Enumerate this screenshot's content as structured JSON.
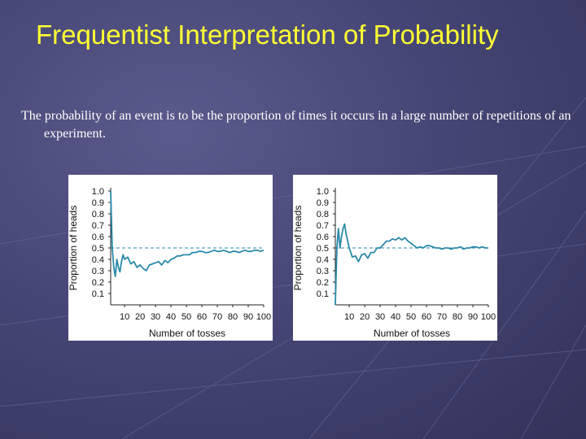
{
  "slide": {
    "title": "Frequentist Interpretation of Probability",
    "body": "The probability of an event is to be the proportion of times it occurs in a large number of repetitions of an experiment."
  },
  "colors": {
    "title": "#ffff33",
    "text": "#ffffff",
    "line": "#2a8aa8",
    "reference": "#2a8aa8"
  },
  "chart_data": [
    {
      "type": "line",
      "xlabel": "Number of tosses",
      "ylabel": "Proportion of heads",
      "xlim": [
        1,
        100
      ],
      "ylim": [
        0,
        1.0
      ],
      "x_ticks": [
        10,
        20,
        30,
        40,
        50,
        60,
        70,
        80,
        90,
        100
      ],
      "y_ticks": [
        0.1,
        0.2,
        0.3,
        0.4,
        0.5,
        0.6,
        0.7,
        0.8,
        0.9,
        1.0
      ],
      "reference_y": 0.5,
      "x": [
        1,
        2,
        3,
        4,
        5,
        6,
        7,
        8,
        9,
        10,
        12,
        14,
        16,
        18,
        20,
        22,
        24,
        26,
        28,
        30,
        32,
        34,
        36,
        38,
        40,
        42,
        44,
        46,
        48,
        50,
        52,
        54,
        56,
        58,
        60,
        62,
        64,
        66,
        68,
        70,
        72,
        74,
        76,
        78,
        80,
        82,
        84,
        86,
        88,
        90,
        92,
        94,
        96,
        98,
        100
      ],
      "series": [
        {
          "values": [
            1.0,
            0.5,
            0.33,
            0.25,
            0.4,
            0.33,
            0.29,
            0.38,
            0.44,
            0.4,
            0.42,
            0.36,
            0.38,
            0.33,
            0.35,
            0.32,
            0.3,
            0.35,
            0.36,
            0.37,
            0.38,
            0.35,
            0.39,
            0.37,
            0.4,
            0.41,
            0.43,
            0.43,
            0.44,
            0.44,
            0.44,
            0.46,
            0.46,
            0.47,
            0.47,
            0.46,
            0.46,
            0.47,
            0.48,
            0.47,
            0.47,
            0.48,
            0.47,
            0.46,
            0.47,
            0.47,
            0.46,
            0.47,
            0.48,
            0.47,
            0.47,
            0.48,
            0.48,
            0.47,
            0.48
          ]
        }
      ]
    },
    {
      "type": "line",
      "xlabel": "Number of tosses",
      "ylabel": "Proportion of heads",
      "xlim": [
        1,
        100
      ],
      "ylim": [
        0,
        1.0
      ],
      "x_ticks": [
        10,
        20,
        30,
        40,
        50,
        60,
        70,
        80,
        90,
        100
      ],
      "y_ticks": [
        0.1,
        0.2,
        0.3,
        0.4,
        0.5,
        0.6,
        0.7,
        0.8,
        0.9,
        1.0
      ],
      "reference_y": 0.5,
      "x": [
        1,
        2,
        3,
        4,
        5,
        6,
        7,
        8,
        9,
        10,
        12,
        14,
        16,
        18,
        20,
        22,
        24,
        26,
        28,
        30,
        32,
        34,
        36,
        38,
        40,
        42,
        44,
        46,
        48,
        50,
        52,
        54,
        56,
        58,
        60,
        62,
        64,
        66,
        68,
        70,
        72,
        74,
        76,
        78,
        80,
        82,
        84,
        86,
        88,
        90,
        92,
        94,
        96,
        98,
        100
      ],
      "series": [
        {
          "values": [
            0.0,
            0.5,
            0.67,
            0.5,
            0.6,
            0.67,
            0.71,
            0.62,
            0.56,
            0.5,
            0.42,
            0.43,
            0.38,
            0.44,
            0.45,
            0.41,
            0.46,
            0.46,
            0.5,
            0.5,
            0.53,
            0.56,
            0.56,
            0.58,
            0.57,
            0.59,
            0.57,
            0.59,
            0.56,
            0.54,
            0.52,
            0.5,
            0.51,
            0.5,
            0.52,
            0.52,
            0.51,
            0.5,
            0.5,
            0.49,
            0.5,
            0.5,
            0.49,
            0.5,
            0.5,
            0.51,
            0.49,
            0.5,
            0.5,
            0.51,
            0.51,
            0.5,
            0.51,
            0.5,
            0.5
          ]
        }
      ]
    }
  ]
}
